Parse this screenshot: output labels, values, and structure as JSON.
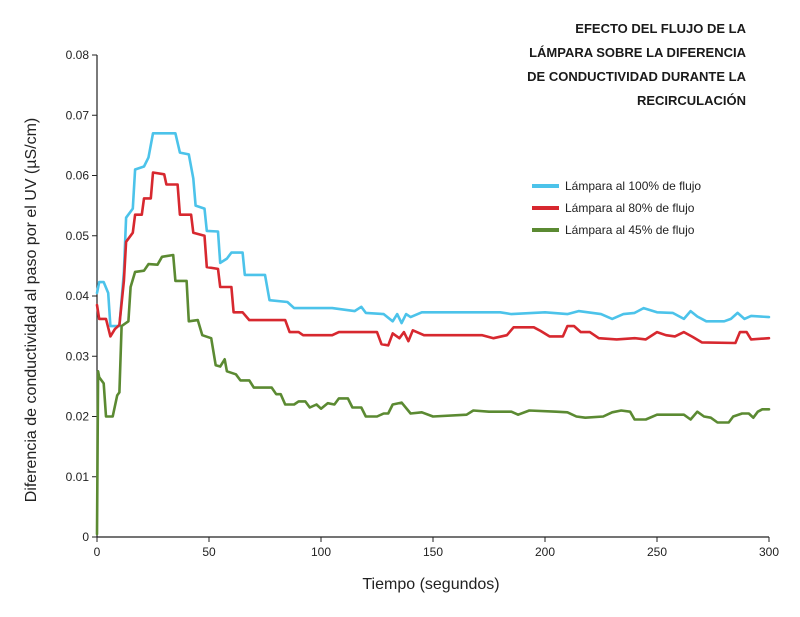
{
  "chart_data": {
    "type": "line",
    "title_lines": [
      "EFECTO DEL FLUJO DE LA",
      "LÁMPARA SOBRE LA DIFERENCIA",
      "DE CONDUCTIVIDAD DURANTE LA",
      "RECIRCULACIÓN"
    ],
    "xlabel": "Tiempo (segundos)",
    "ylabel": "Diferencia de conductividad al paso por el UV (µS/cm)",
    "xlim": [
      0,
      300
    ],
    "ylim": [
      0,
      0.08
    ],
    "x_ticks": [
      "0",
      "50",
      "100",
      "150",
      "200",
      "250",
      "300"
    ],
    "y_ticks": [
      "0",
      "0.01",
      "0.02",
      "0.03",
      "0.04",
      "0.05",
      "0.06",
      "0.07",
      "0.08"
    ],
    "grid": false,
    "legend_position": "right",
    "series": [
      {
        "name": "Lámpara al 100% de flujo",
        "color": "#4cc3ea",
        "points": [
          [
            0,
            0.0405
          ],
          [
            1,
            0.0423
          ],
          [
            3,
            0.0423
          ],
          [
            5,
            0.0405
          ],
          [
            6,
            0.035
          ],
          [
            10,
            0.035
          ],
          [
            12,
            0.044
          ],
          [
            13,
            0.053
          ],
          [
            16,
            0.0545
          ],
          [
            17,
            0.061
          ],
          [
            21,
            0.0615
          ],
          [
            23,
            0.063
          ],
          [
            25,
            0.067
          ],
          [
            35,
            0.067
          ],
          [
            37,
            0.0638
          ],
          [
            41,
            0.0635
          ],
          [
            43,
            0.0595
          ],
          [
            44,
            0.055
          ],
          [
            48,
            0.0545
          ],
          [
            49,
            0.0508
          ],
          [
            54,
            0.0507
          ],
          [
            55,
            0.0455
          ],
          [
            58,
            0.0462
          ],
          [
            60,
            0.0472
          ],
          [
            65,
            0.0472
          ],
          [
            66,
            0.0435
          ],
          [
            75,
            0.0435
          ],
          [
            77,
            0.0393
          ],
          [
            85,
            0.039
          ],
          [
            88,
            0.038
          ],
          [
            105,
            0.038
          ],
          [
            115,
            0.0375
          ],
          [
            118,
            0.0382
          ],
          [
            120,
            0.0372
          ],
          [
            128,
            0.037
          ],
          [
            132,
            0.0358
          ],
          [
            134,
            0.037
          ],
          [
            136,
            0.0355
          ],
          [
            138,
            0.037
          ],
          [
            140,
            0.0365
          ],
          [
            145,
            0.0373
          ],
          [
            180,
            0.0373
          ],
          [
            185,
            0.037
          ],
          [
            200,
            0.0373
          ],
          [
            210,
            0.037
          ],
          [
            215,
            0.0375
          ],
          [
            225,
            0.037
          ],
          [
            230,
            0.0362
          ],
          [
            235,
            0.037
          ],
          [
            240,
            0.0372
          ],
          [
            244,
            0.038
          ],
          [
            250,
            0.0373
          ],
          [
            257,
            0.0372
          ],
          [
            262,
            0.0362
          ],
          [
            265,
            0.0375
          ],
          [
            268,
            0.0366
          ],
          [
            272,
            0.0358
          ],
          [
            280,
            0.0358
          ],
          [
            283,
            0.0362
          ],
          [
            286,
            0.0372
          ],
          [
            289,
            0.0362
          ],
          [
            292,
            0.0367
          ],
          [
            300,
            0.0365
          ]
        ]
      },
      {
        "name": "Lámpara al 80% de flujo",
        "color": "#d7282f",
        "points": [
          [
            0,
            0.0385
          ],
          [
            1,
            0.0362
          ],
          [
            4,
            0.0362
          ],
          [
            6,
            0.0333
          ],
          [
            8,
            0.0345
          ],
          [
            10,
            0.0352
          ],
          [
            12,
            0.0425
          ],
          [
            13,
            0.049
          ],
          [
            16,
            0.0505
          ],
          [
            17,
            0.0535
          ],
          [
            20,
            0.0535
          ],
          [
            21,
            0.0562
          ],
          [
            24,
            0.0562
          ],
          [
            25,
            0.0605
          ],
          [
            30,
            0.0602
          ],
          [
            31,
            0.0585
          ],
          [
            36,
            0.0585
          ],
          [
            37,
            0.0535
          ],
          [
            42,
            0.0535
          ],
          [
            43,
            0.0505
          ],
          [
            48,
            0.05
          ],
          [
            49,
            0.0448
          ],
          [
            54,
            0.0445
          ],
          [
            55,
            0.0415
          ],
          [
            60,
            0.0415
          ],
          [
            61,
            0.0373
          ],
          [
            65,
            0.0373
          ],
          [
            68,
            0.036
          ],
          [
            84,
            0.036
          ],
          [
            86,
            0.034
          ],
          [
            90,
            0.034
          ],
          [
            92,
            0.0335
          ],
          [
            105,
            0.0335
          ],
          [
            108,
            0.034
          ],
          [
            125,
            0.034
          ],
          [
            127,
            0.032
          ],
          [
            130,
            0.0318
          ],
          [
            132,
            0.0338
          ],
          [
            135,
            0.033
          ],
          [
            137,
            0.034
          ],
          [
            139,
            0.0325
          ],
          [
            141,
            0.0343
          ],
          [
            146,
            0.0335
          ],
          [
            172,
            0.0335
          ],
          [
            177,
            0.033
          ],
          [
            183,
            0.0335
          ],
          [
            186,
            0.0348
          ],
          [
            195,
            0.0348
          ],
          [
            198,
            0.0342
          ],
          [
            202,
            0.0333
          ],
          [
            208,
            0.0333
          ],
          [
            210,
            0.035
          ],
          [
            213,
            0.035
          ],
          [
            216,
            0.034
          ],
          [
            220,
            0.034
          ],
          [
            224,
            0.033
          ],
          [
            232,
            0.0328
          ],
          [
            240,
            0.033
          ],
          [
            245,
            0.0328
          ],
          [
            250,
            0.034
          ],
          [
            254,
            0.0335
          ],
          [
            258,
            0.0333
          ],
          [
            262,
            0.034
          ],
          [
            266,
            0.0332
          ],
          [
            270,
            0.0323
          ],
          [
            285,
            0.0322
          ],
          [
            287,
            0.034
          ],
          [
            290,
            0.034
          ],
          [
            292,
            0.0328
          ],
          [
            300,
            0.033
          ]
        ]
      },
      {
        "name": "Lámpara al 45% de flujo",
        "color": "#5b8a32",
        "points": [
          [
            0,
            0.0005
          ],
          [
            0.5,
            0.0275
          ],
          [
            1,
            0.0265
          ],
          [
            3,
            0.0255
          ],
          [
            4,
            0.02
          ],
          [
            7,
            0.02
          ],
          [
            9,
            0.0235
          ],
          [
            10,
            0.024
          ],
          [
            11,
            0.035
          ],
          [
            14,
            0.0358
          ],
          [
            15,
            0.0415
          ],
          [
            17,
            0.044
          ],
          [
            21,
            0.0442
          ],
          [
            23,
            0.0453
          ],
          [
            27,
            0.0452
          ],
          [
            29,
            0.0465
          ],
          [
            34,
            0.0468
          ],
          [
            35,
            0.0425
          ],
          [
            40,
            0.0425
          ],
          [
            41,
            0.0358
          ],
          [
            45,
            0.036
          ],
          [
            47,
            0.0335
          ],
          [
            51,
            0.033
          ],
          [
            53,
            0.0285
          ],
          [
            55,
            0.0283
          ],
          [
            57,
            0.0295
          ],
          [
            58,
            0.0275
          ],
          [
            62,
            0.027
          ],
          [
            64,
            0.026
          ],
          [
            68,
            0.026
          ],
          [
            70,
            0.0248
          ],
          [
            78,
            0.0248
          ],
          [
            80,
            0.0237
          ],
          [
            82,
            0.0237
          ],
          [
            84,
            0.022
          ],
          [
            88,
            0.022
          ],
          [
            90,
            0.0225
          ],
          [
            93,
            0.0225
          ],
          [
            95,
            0.0215
          ],
          [
            98,
            0.022
          ],
          [
            100,
            0.0213
          ],
          [
            103,
            0.0222
          ],
          [
            106,
            0.022
          ],
          [
            108,
            0.023
          ],
          [
            112,
            0.023
          ],
          [
            114,
            0.0215
          ],
          [
            118,
            0.0215
          ],
          [
            120,
            0.02
          ],
          [
            125,
            0.02
          ],
          [
            128,
            0.0205
          ],
          [
            130,
            0.0205
          ],
          [
            132,
            0.022
          ],
          [
            136,
            0.0223
          ],
          [
            140,
            0.0205
          ],
          [
            145,
            0.0207
          ],
          [
            150,
            0.02
          ],
          [
            165,
            0.0203
          ],
          [
            168,
            0.021
          ],
          [
            175,
            0.0208
          ],
          [
            185,
            0.0208
          ],
          [
            188,
            0.0203
          ],
          [
            193,
            0.021
          ],
          [
            205,
            0.0208
          ],
          [
            210,
            0.0207
          ],
          [
            214,
            0.02
          ],
          [
            218,
            0.0198
          ],
          [
            226,
            0.02
          ],
          [
            230,
            0.0207
          ],
          [
            234,
            0.021
          ],
          [
            238,
            0.0208
          ],
          [
            240,
            0.0195
          ],
          [
            245,
            0.0195
          ],
          [
            250,
            0.0203
          ],
          [
            255,
            0.0203
          ],
          [
            262,
            0.0203
          ],
          [
            265,
            0.0195
          ],
          [
            268,
            0.0208
          ],
          [
            271,
            0.02
          ],
          [
            274,
            0.0198
          ],
          [
            277,
            0.019
          ],
          [
            282,
            0.019
          ],
          [
            284,
            0.02
          ],
          [
            288,
            0.0205
          ],
          [
            291,
            0.0205
          ],
          [
            293,
            0.0198
          ],
          [
            295,
            0.0208
          ],
          [
            297,
            0.0212
          ],
          [
            300,
            0.0212
          ]
        ]
      }
    ]
  }
}
